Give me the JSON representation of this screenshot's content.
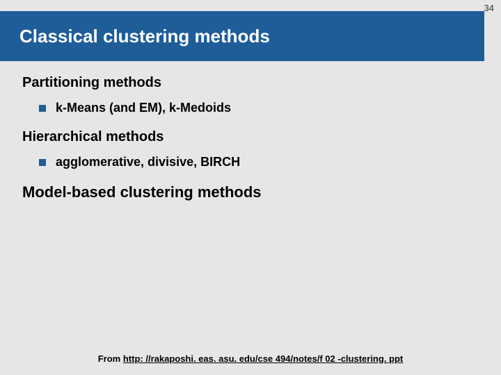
{
  "pageNumber": "34",
  "title": "Classical clustering methods",
  "colors": {
    "titleBarBg": "#1f5d99",
    "titleText": "#ffffff",
    "slideBg": "#e6e6e6",
    "bullet": "#1f5d99",
    "bodyText": "#000000"
  },
  "sections": [
    {
      "heading": "Partitioning methods",
      "headingClass": "section-heading",
      "bullets": [
        {
          "text": "k-Means (and EM), k-Medoids"
        }
      ]
    },
    {
      "heading": "Hierarchical methods",
      "headingClass": "section-heading",
      "bullets": [
        {
          "text": "agglomerative, divisive, BIRCH"
        }
      ]
    },
    {
      "heading": "Model-based clustering methods",
      "headingClass": "section-heading larger",
      "bullets": []
    }
  ],
  "footer": {
    "prefix": "From ",
    "url": "http: //rakaposhi. eas. asu. edu/cse 494/notes/f 02 -clustering. ppt"
  }
}
